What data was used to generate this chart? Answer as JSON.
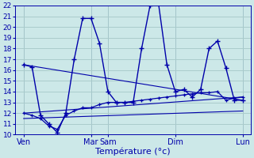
{
  "background_color": "#cce8e8",
  "grid_color": "#aacccc",
  "line_color": "#0000aa",
  "xlabel": "Température (°c)",
  "ylim": [
    10,
    22
  ],
  "xlim": [
    0,
    28
  ],
  "day_labels": [
    "Ven",
    "Mar",
    "Sam",
    "Dim",
    "Lun"
  ],
  "day_positions": [
    1,
    9,
    11,
    19,
    27
  ],
  "vline_positions": [
    1,
    9,
    11,
    19,
    27
  ],
  "main_x": [
    1,
    2,
    3,
    4,
    5,
    6,
    7,
    8,
    9,
    10,
    11,
    12,
    13,
    14,
    15,
    16,
    17,
    18,
    19,
    20,
    21,
    22,
    23,
    24,
    25,
    26,
    27
  ],
  "main_y": [
    16.5,
    16.3,
    11.8,
    11.0,
    10.2,
    12.0,
    17.0,
    20.8,
    20.8,
    18.5,
    14.0,
    13.0,
    13.0,
    13.0,
    18.0,
    22.0,
    22.2,
    16.5,
    14.0,
    14.2,
    13.5,
    14.2,
    18.0,
    18.7,
    16.2,
    13.2,
    13.2
  ],
  "line2_x": [
    1,
    2,
    3,
    4,
    5,
    6,
    7,
    8,
    9,
    10,
    11,
    12,
    13,
    14,
    15,
    16,
    17,
    18,
    19,
    20,
    21,
    22,
    23,
    24,
    25,
    26,
    27
  ],
  "line2_y": [
    12.0,
    11.8,
    11.5,
    10.8,
    10.5,
    11.8,
    12.2,
    12.5,
    12.5,
    12.8,
    13.0,
    13.0,
    13.0,
    13.1,
    13.2,
    13.3,
    13.4,
    13.5,
    13.6,
    13.7,
    13.8,
    13.9,
    13.9,
    14.0,
    13.2,
    13.4,
    13.5
  ],
  "trend1_x": [
    1,
    27
  ],
  "trend1_y": [
    16.5,
    13.2
  ],
  "trend2_x": [
    1,
    27
  ],
  "trend2_y": [
    12.0,
    13.5
  ],
  "trend3_x": [
    1,
    27
  ],
  "trend3_y": [
    11.5,
    12.2
  ]
}
